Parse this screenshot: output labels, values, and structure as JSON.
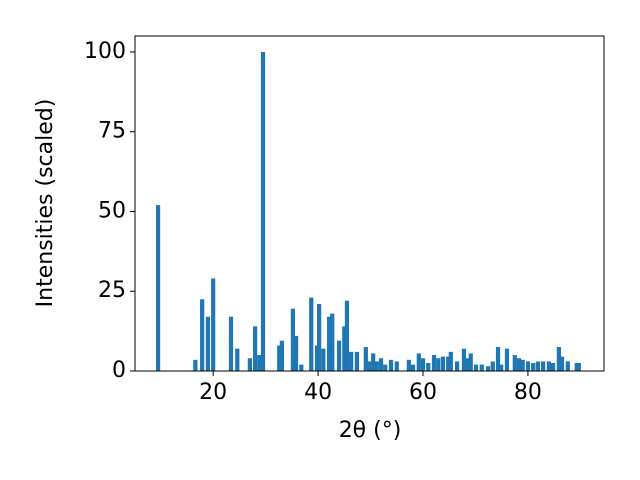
{
  "chart_data": {
    "type": "bar",
    "xlabel": "2θ (°)",
    "ylabel": "Intensities (scaled)",
    "color": "#1f77b4",
    "x": [
      9.5,
      16.6,
      17.9,
      19.0,
      20.0,
      23.4,
      24.6,
      27.0,
      28.0,
      28.8,
      29.5,
      32.6,
      33.1,
      35.2,
      35.8,
      36.8,
      38.7,
      39.8,
      40.2,
      41.0,
      42.1,
      42.7,
      44.0,
      45.0,
      45.5,
      46.3,
      47.4,
      49.1,
      49.7,
      50.5,
      51.2,
      52.0,
      52.8,
      53.9,
      55.0,
      57.3,
      58.1,
      59.2,
      60.0,
      61.0,
      62.1,
      62.9,
      63.8,
      64.8,
      65.3,
      66.5,
      67.8,
      68.4,
      69.1,
      70.1,
      71.2,
      72.4,
      73.3,
      74.3,
      74.9,
      76.0,
      77.5,
      78.3,
      79.0,
      80.0,
      81.0,
      81.9,
      82.9,
      84.0,
      84.8,
      85.9,
      86.5,
      87.6,
      89.3,
      89.7
    ],
    "values": [
      52,
      3.5,
      22.5,
      17,
      29,
      17,
      7,
      4,
      14,
      5,
      100,
      8,
      9.5,
      19.5,
      11,
      2,
      23,
      8,
      21,
      7,
      17,
      18,
      9.5,
      14,
      22,
      6,
      6,
      7.5,
      3,
      5.5,
      3,
      4,
      2,
      3.5,
      3,
      3.5,
      2,
      5.5,
      4,
      2.5,
      5,
      4,
      4.5,
      4.5,
      6,
      3,
      7,
      4,
      5.5,
      2,
      2,
      1.5,
      3,
      7.5,
      2,
      7,
      5,
      4,
      3.5,
      3,
      2.5,
      3,
      3,
      3,
      2.5,
      7.5,
      4.5,
      3,
      2.5,
      2.5
    ],
    "xlim": [
      5.1,
      94.5
    ],
    "ylim": [
      0,
      105
    ],
    "xticks": [
      20,
      40,
      60,
      80
    ],
    "yticks": [
      0,
      25,
      50,
      75,
      100
    ]
  }
}
